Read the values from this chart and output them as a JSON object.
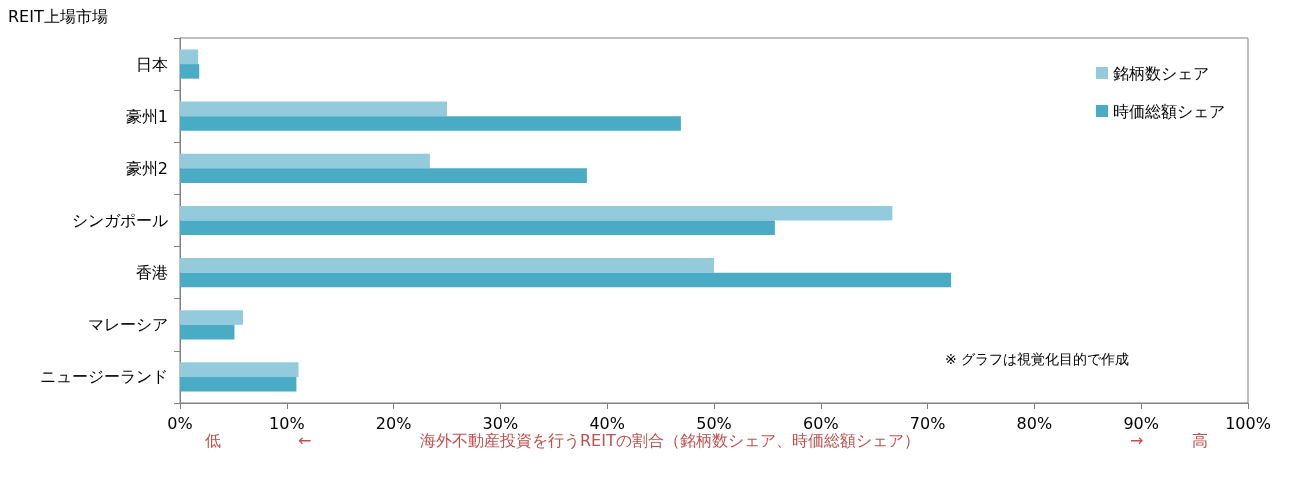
{
  "chart_data": {
    "type": "bar",
    "orientation": "horizontal",
    "ylabel": "REIT上場市場",
    "xlabel": "海外不動産投資を行うREITの割合（銘柄数シェア、時価総額シェア）",
    "categories": [
      "日本",
      "豪州1",
      "豪州2",
      "シンガポール",
      "香港",
      "マレーシア",
      "ニュージーランド"
    ],
    "series": [
      {
        "name": "銘柄数シェア",
        "color": "#93cbdc",
        "values": [
          1.7,
          25.0,
          23.4,
          66.7,
          50.0,
          5.9,
          11.1
        ]
      },
      {
        "name": "時価総額シェア",
        "color": "#4aabc5",
        "values": [
          1.8,
          46.9,
          38.1,
          55.7,
          72.2,
          5.1,
          10.9
        ]
      }
    ],
    "xlim": [
      0,
      100
    ],
    "xticks": [
      {
        "value": 0,
        "label": "0%"
      },
      {
        "value": 10,
        "label": "10%"
      },
      {
        "value": 20,
        "label": "20%"
      },
      {
        "value": 30,
        "label": "30%"
      },
      {
        "value": 40,
        "label": "40%"
      },
      {
        "value": 50,
        "label": "50%"
      },
      {
        "value": 60,
        "label": "60%"
      },
      {
        "value": 70,
        "label": "70%"
      },
      {
        "value": 80,
        "label": "80%"
      },
      {
        "value": 90,
        "label": "90%"
      },
      {
        "value": 100,
        "label": "100%"
      }
    ],
    "grid": false,
    "legend": "top right",
    "annotations": [
      "※ グラフは視覚化目的で作成",
      "低",
      "←",
      "→",
      "高"
    ]
  }
}
